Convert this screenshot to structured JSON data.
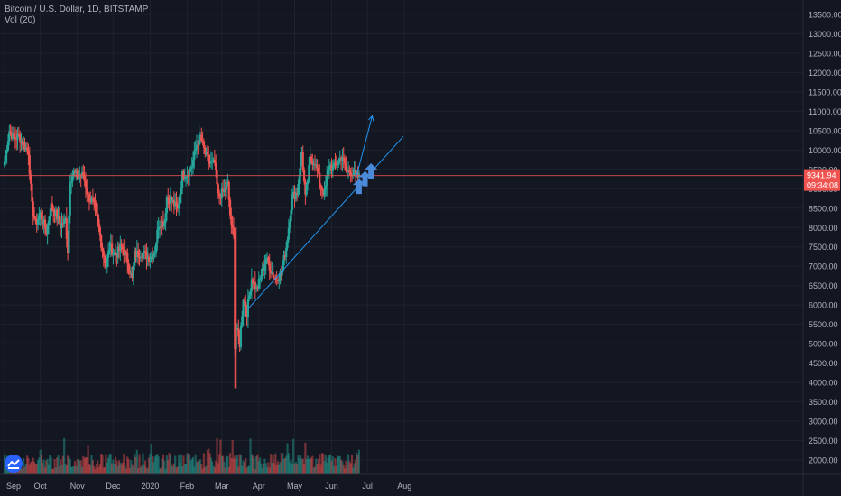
{
  "legend": {
    "symbol": "Bitcoin / U.S. Dollar, 1D, BITSTAMP",
    "volume": "Vol (20)"
  },
  "price_tag": {
    "price": "9341.94",
    "countdown": "09:34:08"
  },
  "colors": {
    "background": "#131722",
    "up": "#26a69a",
    "down": "#ef5350",
    "grid": "#1e222d",
    "axis_text": "#b2b5be",
    "price_line": "#ef5350",
    "drawing": "#2196f3",
    "arrows": "#4a8ad8"
  },
  "chart_data": {
    "type": "candlestick",
    "title": "Bitcoin / U.S. Dollar, 1D, BITSTAMP",
    "y_ticks": [
      2000,
      2500,
      3000,
      3500,
      4000,
      4500,
      5000,
      5500,
      6000,
      6500,
      7000,
      7500,
      8000,
      8500,
      9000,
      9500,
      10000,
      10500,
      11000,
      11500,
      12000,
      12500,
      13000,
      13500
    ],
    "y_tick_labels": [
      "2000.00",
      "2500.00",
      "3000.00",
      "3500.00",
      "4000.00",
      "4500.00",
      "5000.00",
      "5500.00",
      "6000.00",
      "6500.00",
      "7000.00",
      "7500.00",
      "8000.00",
      "8500.00",
      "9000.00",
      "9500.00",
      "10000.00",
      "10500.00",
      "11000.00",
      "11500.00",
      "12000.00",
      "12500.00",
      "13000.00",
      "13500.00"
    ],
    "ylim": [
      1600,
      13750
    ],
    "x_labels": [
      "Sep",
      "Oct",
      "Nov",
      "Dec",
      "2020",
      "Feb",
      "Mar",
      "Apr",
      "May",
      "Jun",
      "Jul",
      "Aug"
    ],
    "last_price": 9341.94,
    "closes": [
      {
        "date": "2019-09-01",
        "close": 9700
      },
      {
        "date": "2019-09-05",
        "close": 10500
      },
      {
        "date": "2019-09-09",
        "close": 10300
      },
      {
        "date": "2019-09-13",
        "close": 10350
      },
      {
        "date": "2019-09-17",
        "close": 10150
      },
      {
        "date": "2019-09-21",
        "close": 9950
      },
      {
        "date": "2019-09-24",
        "close": 8550
      },
      {
        "date": "2019-09-27",
        "close": 8100
      },
      {
        "date": "2019-10-01",
        "close": 8350
      },
      {
        "date": "2019-10-06",
        "close": 7900
      },
      {
        "date": "2019-10-10",
        "close": 8550
      },
      {
        "date": "2019-10-14",
        "close": 8350
      },
      {
        "date": "2019-10-18",
        "close": 8050
      },
      {
        "date": "2019-10-22",
        "close": 8200
      },
      {
        "date": "2019-10-24",
        "close": 7400
      },
      {
        "date": "2019-10-26",
        "close": 9250
      },
      {
        "date": "2019-10-29",
        "close": 9400
      },
      {
        "date": "2019-11-02",
        "close": 9300
      },
      {
        "date": "2019-11-06",
        "close": 9350
      },
      {
        "date": "2019-11-10",
        "close": 8800
      },
      {
        "date": "2019-11-14",
        "close": 8650
      },
      {
        "date": "2019-11-18",
        "close": 8150
      },
      {
        "date": "2019-11-21",
        "close": 7600
      },
      {
        "date": "2019-11-25",
        "close": 7000
      },
      {
        "date": "2019-11-28",
        "close": 7500
      },
      {
        "date": "2019-12-03",
        "close": 7300
      },
      {
        "date": "2019-12-08",
        "close": 7500
      },
      {
        "date": "2019-12-12",
        "close": 7250
      },
      {
        "date": "2019-12-17",
        "close": 6650
      },
      {
        "date": "2019-12-19",
        "close": 7300
      },
      {
        "date": "2019-12-24",
        "close": 7350
      },
      {
        "date": "2019-12-28",
        "close": 7300
      },
      {
        "date": "2020-01-01",
        "close": 7200
      },
      {
        "date": "2020-01-05",
        "close": 7400
      },
      {
        "date": "2020-01-08",
        "close": 8100
      },
      {
        "date": "2020-01-13",
        "close": 8150
      },
      {
        "date": "2020-01-15",
        "close": 8800
      },
      {
        "date": "2020-01-20",
        "close": 8650
      },
      {
        "date": "2020-01-24",
        "close": 8450
      },
      {
        "date": "2020-01-28",
        "close": 9350
      },
      {
        "date": "2020-02-01",
        "close": 9400
      },
      {
        "date": "2020-02-05",
        "close": 9600
      },
      {
        "date": "2020-02-09",
        "close": 10150
      },
      {
        "date": "2020-02-12",
        "close": 10350
      },
      {
        "date": "2020-02-16",
        "close": 9900
      },
      {
        "date": "2020-02-20",
        "close": 9650
      },
      {
        "date": "2020-02-24",
        "close": 9650
      },
      {
        "date": "2020-02-27",
        "close": 8800
      },
      {
        "date": "2020-03-02",
        "close": 8900
      },
      {
        "date": "2020-03-06",
        "close": 9100
      },
      {
        "date": "2020-03-09",
        "close": 7950
      },
      {
        "date": "2020-03-11",
        "close": 7900
      },
      {
        "date": "2020-03-12",
        "close": 4900
      },
      {
        "date": "2020-03-13",
        "close": 5400
      },
      {
        "date": "2020-03-16",
        "close": 5000
      },
      {
        "date": "2020-03-19",
        "close": 6200
      },
      {
        "date": "2020-03-22",
        "close": 5800
      },
      {
        "date": "2020-03-26",
        "close": 6700
      },
      {
        "date": "2020-03-30",
        "close": 6400
      },
      {
        "date": "2020-04-03",
        "close": 6750
      },
      {
        "date": "2020-04-07",
        "close": 7200
      },
      {
        "date": "2020-04-11",
        "close": 6900
      },
      {
        "date": "2020-04-15",
        "close": 6650
      },
      {
        "date": "2020-04-20",
        "close": 6850
      },
      {
        "date": "2020-04-24",
        "close": 7500
      },
      {
        "date": "2020-04-29",
        "close": 8800
      },
      {
        "date": "2020-05-03",
        "close": 8900
      },
      {
        "date": "2020-05-07",
        "close": 9950
      },
      {
        "date": "2020-05-10",
        "close": 8750
      },
      {
        "date": "2020-05-14",
        "close": 9750
      },
      {
        "date": "2020-05-18",
        "close": 9700
      },
      {
        "date": "2020-05-22",
        "close": 9150
      },
      {
        "date": "2020-05-26",
        "close": 8850
      },
      {
        "date": "2020-05-30",
        "close": 9650
      },
      {
        "date": "2020-06-02",
        "close": 9500
      },
      {
        "date": "2020-06-06",
        "close": 9700
      },
      {
        "date": "2020-06-10",
        "close": 9850
      },
      {
        "date": "2020-06-13",
        "close": 9450
      },
      {
        "date": "2020-06-17",
        "close": 9450
      },
      {
        "date": "2020-06-21",
        "close": 9350
      },
      {
        "date": "2020-06-24",
        "close": 9300
      }
    ],
    "volume_ylim": [
      0,
      0
    ]
  },
  "annotations": {
    "trendline": {
      "start_date": "2020-03-23",
      "start_price": 5900,
      "end_date": "2020-07-31",
      "end_price": 10350
    },
    "projection_arrow": {
      "start_date": "2020-06-22",
      "start_price": 9341.94,
      "end_date": "2020-07-05",
      "end_price": 10880
    },
    "up_arrows": [
      {
        "date": "2020-06-24",
        "price": 9050
      },
      {
        "date": "2020-06-29",
        "price": 9250
      },
      {
        "date": "2020-07-04",
        "price": 9450
      }
    ]
  }
}
